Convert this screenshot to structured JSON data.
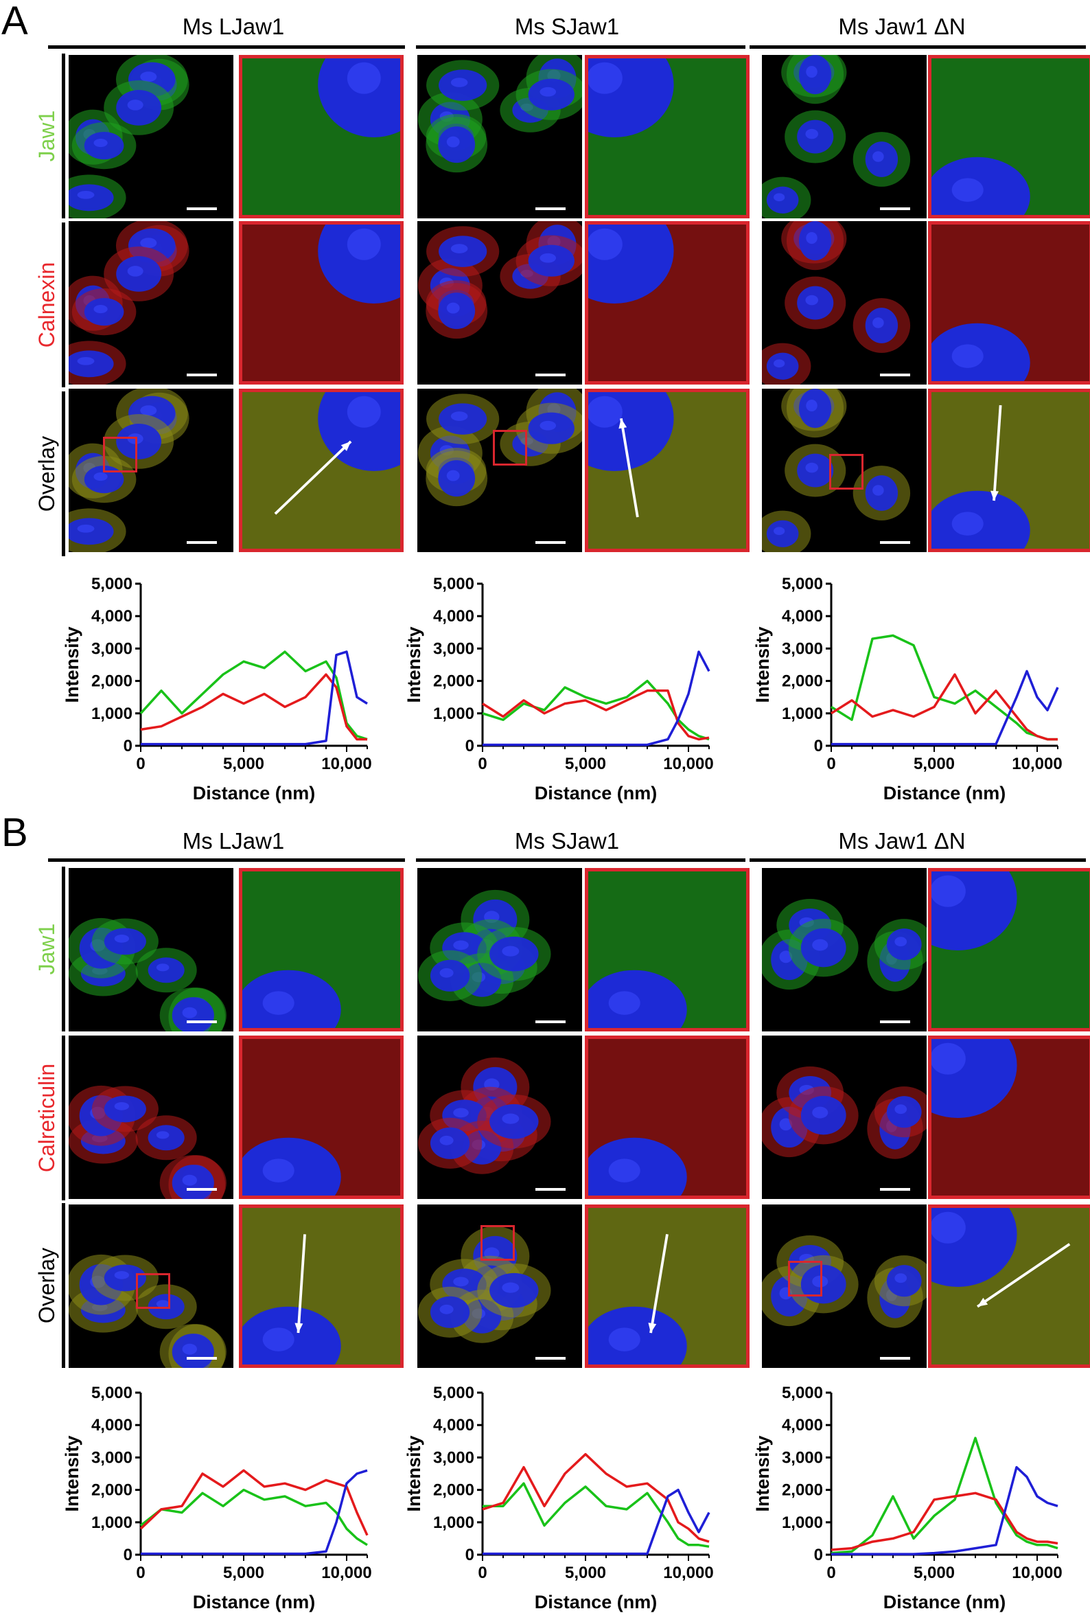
{
  "figure": {
    "panels": [
      {
        "letter": "A",
        "columns": [
          "Ms LJaw1",
          "Ms SJaw1",
          "Ms Jaw1 ΔN"
        ],
        "rows": [
          {
            "label": "Jaw1",
            "color": "#7ed04b",
            "channel": "green"
          },
          {
            "label": "Calnexin",
            "color": "#e8282d",
            "channel": "red"
          },
          {
            "label": "Overlay",
            "color": "#000000",
            "channel": "overlay"
          }
        ]
      },
      {
        "letter": "B",
        "columns": [
          "Ms LJaw1",
          "Ms SJaw1",
          "Ms Jaw1 ΔN"
        ],
        "rows": [
          {
            "label": "Jaw1",
            "color": "#7ed04b",
            "channel": "green"
          },
          {
            "label": "Calreticulin",
            "color": "#e8282d",
            "channel": "red"
          },
          {
            "label": "Overlay",
            "color": "#000000",
            "channel": "overlay"
          }
        ]
      }
    ]
  },
  "chart_data": [
    {
      "panel": "A",
      "column": "Ms LJaw1",
      "type": "line",
      "xlabel": "Distance (nm)",
      "ylabel": "Intensity",
      "xlim": [
        0,
        11000
      ],
      "ylim": [
        0,
        5000
      ],
      "xticks": [
        "0",
        "5,000",
        "10,000"
      ],
      "yticks": [
        "0",
        "1,000",
        "2,000",
        "3,000",
        "4,000",
        "5,000"
      ],
      "x": [
        0,
        1000,
        2000,
        3000,
        4000,
        5000,
        6000,
        7000,
        8000,
        9000,
        9500,
        10000,
        10500,
        11000
      ],
      "series": [
        {
          "color": "#19c219",
          "values": [
            1000,
            1700,
            1000,
            1600,
            2200,
            2600,
            2400,
            2900,
            2300,
            2600,
            2100,
            700,
            300,
            200
          ]
        },
        {
          "color": "#e41a1c",
          "values": [
            500,
            600,
            900,
            1200,
            1600,
            1300,
            1600,
            1200,
            1500,
            2200,
            1800,
            600,
            200,
            200
          ]
        },
        {
          "color": "#1f1fd6",
          "values": [
            50,
            50,
            50,
            50,
            50,
            50,
            50,
            50,
            50,
            150,
            2800,
            2900,
            1500,
            1300
          ]
        }
      ]
    },
    {
      "panel": "A",
      "column": "Ms SJaw1",
      "type": "line",
      "xlabel": "Distance (nm)",
      "ylabel": "Intensity",
      "xlim": [
        0,
        11000
      ],
      "ylim": [
        0,
        5000
      ],
      "xticks": [
        "0",
        "5,000",
        "10,000"
      ],
      "yticks": [
        "0",
        "1,000",
        "2,000",
        "3,000",
        "4,000",
        "5,000"
      ],
      "x": [
        0,
        1000,
        2000,
        3000,
        4000,
        5000,
        6000,
        7000,
        8000,
        9000,
        9500,
        10000,
        10500,
        11000
      ],
      "series": [
        {
          "color": "#19c219",
          "values": [
            1000,
            800,
            1300,
            1100,
            1800,
            1500,
            1300,
            1500,
            2000,
            1300,
            800,
            500,
            300,
            200
          ]
        },
        {
          "color": "#e41a1c",
          "values": [
            1300,
            900,
            1400,
            1000,
            1300,
            1400,
            1100,
            1400,
            1700,
            1700,
            700,
            300,
            200,
            250
          ]
        },
        {
          "color": "#1f1fd6",
          "values": [
            30,
            30,
            30,
            30,
            30,
            30,
            30,
            30,
            30,
            200,
            800,
            1600,
            2900,
            2300
          ]
        }
      ]
    },
    {
      "panel": "A",
      "column": "Ms Jaw1 ΔN",
      "type": "line",
      "xlabel": "Distance (nm)",
      "ylabel": "Intensity",
      "xlim": [
        0,
        11000
      ],
      "ylim": [
        0,
        5000
      ],
      "xticks": [
        "0",
        "5,000",
        "10,000"
      ],
      "yticks": [
        "0",
        "1,000",
        "2,000",
        "3,000",
        "4,000",
        "5,000"
      ],
      "x": [
        0,
        1000,
        2000,
        3000,
        4000,
        5000,
        6000,
        7000,
        8000,
        9000,
        9500,
        10000,
        10500,
        11000
      ],
      "series": [
        {
          "color": "#19c219",
          "values": [
            1200,
            800,
            3300,
            3400,
            3100,
            1500,
            1300,
            1700,
            1200,
            700,
            400,
            300,
            200,
            200
          ]
        },
        {
          "color": "#e41a1c",
          "values": [
            1000,
            1400,
            900,
            1100,
            900,
            1200,
            2200,
            1000,
            1700,
            900,
            500,
            300,
            200,
            200
          ]
        },
        {
          "color": "#1f1fd6",
          "values": [
            50,
            50,
            50,
            50,
            50,
            50,
            50,
            50,
            50,
            1500,
            2300,
            1500,
            1100,
            1800
          ]
        }
      ]
    },
    {
      "panel": "B",
      "column": "Ms LJaw1",
      "type": "line",
      "xlabel": "Distance (nm)",
      "ylabel": "Intensity",
      "xlim": [
        0,
        11000
      ],
      "ylim": [
        0,
        5000
      ],
      "xticks": [
        "0",
        "5,000",
        "10,000"
      ],
      "yticks": [
        "0",
        "1,000",
        "2,000",
        "3,000",
        "4,000",
        "5,000"
      ],
      "x": [
        0,
        1000,
        2000,
        3000,
        4000,
        5000,
        6000,
        7000,
        8000,
        9000,
        9500,
        10000,
        10500,
        11000
      ],
      "series": [
        {
          "color": "#19c219",
          "values": [
            900,
            1400,
            1300,
            1900,
            1500,
            2000,
            1700,
            1800,
            1500,
            1600,
            1300,
            800,
            500,
            300
          ]
        },
        {
          "color": "#e41a1c",
          "values": [
            800,
            1400,
            1500,
            2500,
            2100,
            2600,
            2100,
            2200,
            2000,
            2300,
            2200,
            2100,
            1300,
            600
          ]
        },
        {
          "color": "#1f1fd6",
          "values": [
            30,
            30,
            30,
            30,
            30,
            30,
            30,
            30,
            30,
            100,
            1000,
            2200,
            2500,
            2600
          ]
        }
      ]
    },
    {
      "panel": "B",
      "column": "Ms SJaw1",
      "type": "line",
      "xlabel": "Distance (nm)",
      "ylabel": "Intensity",
      "xlim": [
        0,
        11000
      ],
      "ylim": [
        0,
        5000
      ],
      "xticks": [
        "0",
        "5,000",
        "10,000"
      ],
      "yticks": [
        "0",
        "1,000",
        "2,000",
        "3,000",
        "4,000",
        "5,000"
      ],
      "x": [
        0,
        1000,
        2000,
        3000,
        4000,
        5000,
        6000,
        7000,
        8000,
        9000,
        9500,
        10000,
        10500,
        11000
      ],
      "series": [
        {
          "color": "#19c219",
          "values": [
            1500,
            1500,
            2200,
            900,
            1600,
            2100,
            1500,
            1400,
            1900,
            1000,
            500,
            300,
            300,
            250
          ]
        },
        {
          "color": "#e41a1c",
          "values": [
            1400,
            1600,
            2700,
            1500,
            2500,
            3100,
            2500,
            2100,
            2200,
            1700,
            1000,
            800,
            500,
            400
          ]
        },
        {
          "color": "#1f1fd6",
          "values": [
            30,
            30,
            30,
            30,
            30,
            30,
            30,
            30,
            30,
            1800,
            2000,
            1300,
            700,
            1300
          ]
        }
      ]
    },
    {
      "panel": "B",
      "column": "Ms Jaw1 ΔN",
      "type": "line",
      "xlabel": "Distance (nm)",
      "ylabel": "Intensity",
      "xlim": [
        0,
        11000
      ],
      "ylim": [
        0,
        5000
      ],
      "xticks": [
        "0",
        "5,000",
        "10,000"
      ],
      "yticks": [
        "0",
        "1,000",
        "2,000",
        "3,000",
        "4,000",
        "5,000"
      ],
      "x": [
        0,
        1000,
        2000,
        3000,
        4000,
        5000,
        6000,
        7000,
        8000,
        9000,
        9500,
        10000,
        10500,
        11000
      ],
      "series": [
        {
          "color": "#19c219",
          "values": [
            50,
            100,
            600,
            1800,
            500,
            1200,
            1700,
            3600,
            1600,
            600,
            400,
            300,
            300,
            200
          ]
        },
        {
          "color": "#e41a1c",
          "values": [
            150,
            200,
            400,
            500,
            700,
            1700,
            1800,
            1900,
            1700,
            700,
            500,
            400,
            400,
            350
          ]
        },
        {
          "color": "#1f1fd6",
          "values": [
            20,
            20,
            20,
            20,
            20,
            50,
            100,
            200,
            300,
            2700,
            2400,
            1800,
            1600,
            1500
          ]
        }
      ]
    }
  ]
}
